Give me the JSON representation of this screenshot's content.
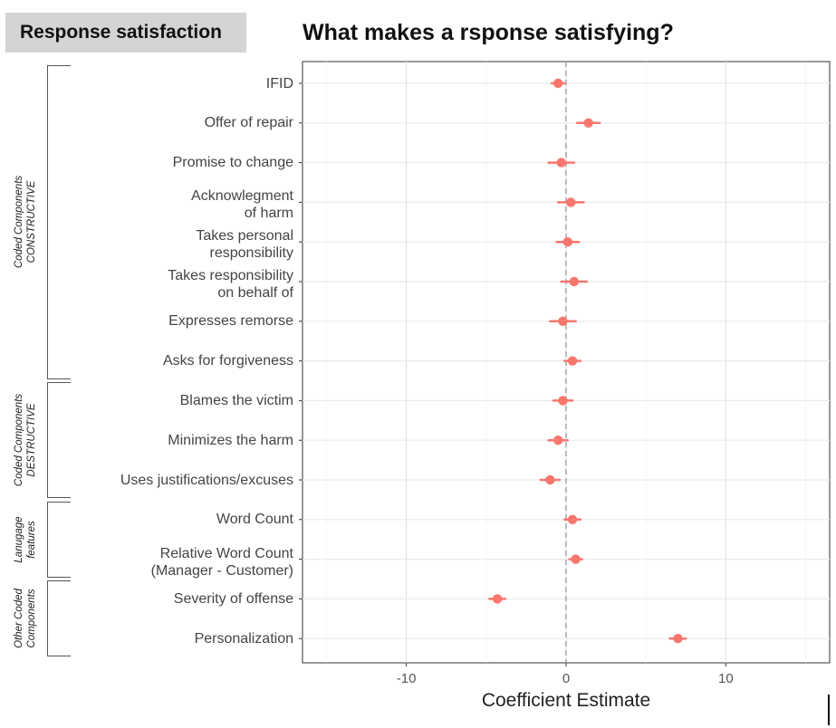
{
  "header": {
    "slide_tag": "Response satisfaction",
    "title": "What makes a rsponse satisfying?"
  },
  "groups": [
    {
      "lines": [
        "Coded Components",
        "CONSTRUCTIVE"
      ],
      "first": 0,
      "last": 7
    },
    {
      "lines": [
        "Coded Components",
        "DESTRUCTIVE"
      ],
      "first": 8,
      "last": 10
    },
    {
      "lines": [
        "Lanugage",
        "features"
      ],
      "first": 11,
      "last": 12
    },
    {
      "lines": [
        "Other Coded",
        "Components"
      ],
      "first": 13,
      "last": 14
    }
  ],
  "chart_data": {
    "type": "scatter",
    "subtype": "coefficient-plot",
    "title": "What makes a rsponse satisfying?",
    "xlabel": "Coefficient Estimate",
    "ylabel": "",
    "xlim": [
      -16.5,
      16.5
    ],
    "xticks": [
      -10,
      0,
      10
    ],
    "reference_line": 0,
    "grid": true,
    "point_color": "#f8766d",
    "categories": [
      "IFID",
      "Offer of repair",
      "Promise to change",
      "Acknowlegment\nof harm",
      "Takes personal\nresponsibility",
      "Takes responsibility\non behalf of",
      "Expresses remorse",
      "Asks for forgiveness",
      "Blames the victim",
      "Minimizes the harm",
      "Uses justifications/excuses",
      "Word Count",
      "Relative Word Count\n(Manager - Customer)",
      "Severity of offense",
      "Personalization"
    ],
    "estimates": [
      -0.5,
      1.4,
      -0.3,
      0.3,
      0.1,
      0.5,
      -0.2,
      0.4,
      -0.2,
      -0.5,
      -1.0,
      0.4,
      0.6,
      -4.3,
      7.0
    ],
    "ci_low": [
      -0.9,
      0.7,
      -1.1,
      -0.5,
      -0.6,
      -0.3,
      -1.0,
      -0.1,
      -0.8,
      -1.1,
      -1.6,
      -0.1,
      0.2,
      -4.8,
      6.5
    ],
    "ci_high": [
      -0.1,
      2.1,
      0.5,
      1.1,
      0.8,
      1.3,
      0.6,
      0.9,
      0.4,
      0.1,
      -0.4,
      0.9,
      1.0,
      -3.8,
      7.5
    ]
  }
}
